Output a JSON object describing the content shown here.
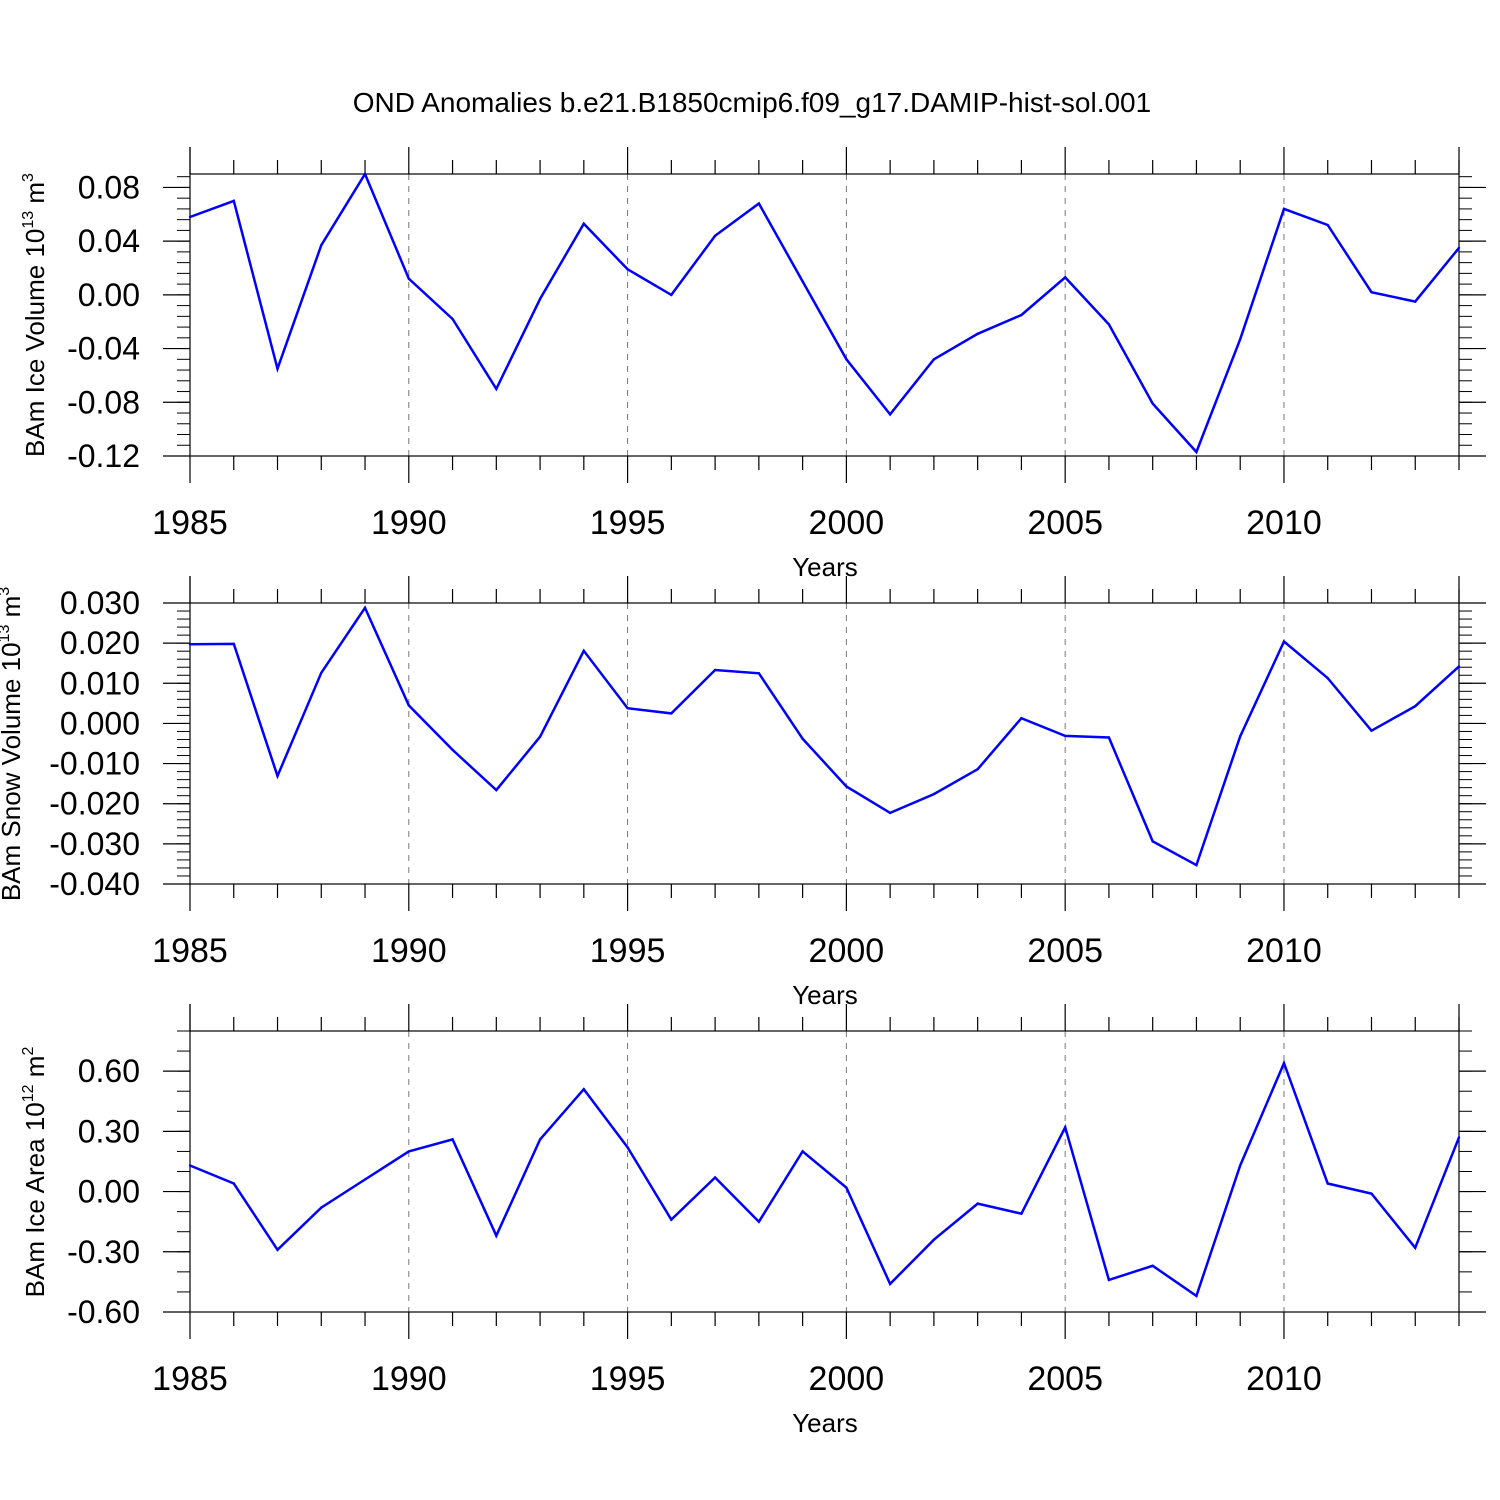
{
  "title": "OND Anomalies b.e21.B1850cmip6.f09_g17.DAMIP-hist-sol.001",
  "line_color": "#0000ff",
  "chart_data": [
    {
      "type": "line",
      "ylabel_main": "BAm Ice Volume 10",
      "ylabel_exp": "13",
      "ylabel_unit": "m",
      "ylabel_unit_exp": "3",
      "xlabel": "Years",
      "xlim": [
        1985,
        2014
      ],
      "ylim": [
        -0.12,
        0.09
      ],
      "x_ticks": [
        1985,
        1990,
        1995,
        2000,
        2005,
        2010
      ],
      "x_tick_labels": [
        "1985",
        "1990",
        "1995",
        "2000",
        "2005",
        "2010"
      ],
      "y_ticks": [
        0.08,
        0.04,
        0.0,
        -0.04,
        -0.08,
        -0.12
      ],
      "y_tick_labels": [
        "0.08",
        "0.04",
        "0.00",
        "-0.04",
        "-0.08",
        "-0.12"
      ],
      "y_minor_step": 0.008,
      "x": [
        1985,
        1986,
        1987,
        1988,
        1989,
        1990,
        1991,
        1992,
        1993,
        1994,
        1995,
        1996,
        1997,
        1998,
        1999,
        2000,
        2001,
        2002,
        2003,
        2004,
        2005,
        2006,
        2007,
        2008,
        2009,
        2010,
        2011,
        2012,
        2013,
        2014
      ],
      "values": [
        0.058,
        0.07,
        -0.055,
        0.037,
        0.09,
        0.012,
        -0.018,
        -0.07,
        -0.003,
        0.053,
        0.019,
        0.0,
        0.044,
        0.068,
        0.01,
        -0.048,
        -0.089,
        -0.048,
        -0.029,
        -0.015,
        0.013,
        -0.022,
        -0.081,
        -0.117,
        -0.033,
        0.064,
        0.052,
        0.002,
        -0.005,
        0.035
      ]
    },
    {
      "type": "line",
      "ylabel_main": "BAm Snow Volume 10",
      "ylabel_exp": "13",
      "ylabel_unit": "m",
      "ylabel_unit_exp": "3",
      "xlabel": "Years",
      "xlim": [
        1985,
        2014
      ],
      "ylim": [
        -0.04,
        0.03
      ],
      "x_ticks": [
        1985,
        1990,
        1995,
        2000,
        2005,
        2010
      ],
      "x_tick_labels": [
        "1985",
        "1990",
        "1995",
        "2000",
        "2005",
        "2010"
      ],
      "y_ticks": [
        0.03,
        0.02,
        0.01,
        0.0,
        -0.01,
        -0.02,
        -0.03,
        -0.04
      ],
      "y_tick_labels": [
        "0.030",
        "0.020",
        "0.010",
        "0.000",
        "-0.010",
        "-0.020",
        "-0.030",
        "-0.040"
      ],
      "y_minor_step": 0.002,
      "x": [
        1985,
        1986,
        1987,
        1988,
        1989,
        1990,
        1991,
        1992,
        1993,
        1994,
        1995,
        1996,
        1997,
        1998,
        1999,
        2000,
        2001,
        2002,
        2003,
        2004,
        2005,
        2006,
        2007,
        2008,
        2009,
        2010,
        2011,
        2012,
        2013,
        2014
      ],
      "values": [
        0.0197,
        0.0198,
        -0.0131,
        0.0126,
        0.0288,
        0.0045,
        -0.0066,
        -0.0166,
        -0.0033,
        0.0181,
        0.0038,
        0.0025,
        0.0133,
        0.0125,
        -0.0038,
        -0.0157,
        -0.0223,
        -0.0176,
        -0.0114,
        0.0013,
        -0.0031,
        -0.0035,
        -0.0294,
        -0.0353,
        -0.0032,
        0.0204,
        0.0113,
        -0.0018,
        0.0043,
        0.0142
      ]
    },
    {
      "type": "line",
      "ylabel_main": "BAm Ice Area 10",
      "ylabel_exp": "12",
      "ylabel_unit": "m",
      "ylabel_unit_exp": "2",
      "xlabel": "Years",
      "xlim": [
        1985,
        2014
      ],
      "ylim": [
        -0.6,
        0.8
      ],
      "x_ticks": [
        1985,
        1990,
        1995,
        2000,
        2005,
        2010
      ],
      "x_tick_labels": [
        "1985",
        "1990",
        "1995",
        "2000",
        "2005",
        "2010"
      ],
      "y_ticks": [
        0.6,
        0.3,
        0.0,
        -0.3,
        -0.6
      ],
      "y_tick_labels": [
        "0.60",
        "0.30",
        "0.00",
        "-0.30",
        "-0.60"
      ],
      "y_minor_step": 0.1,
      "x": [
        1985,
        1986,
        1987,
        1988,
        1989,
        1990,
        1991,
        1992,
        1993,
        1994,
        1995,
        1996,
        1997,
        1998,
        1999,
        2000,
        2001,
        2002,
        2003,
        2004,
        2005,
        2006,
        2007,
        2008,
        2009,
        2010,
        2011,
        2012,
        2013,
        2014
      ],
      "values": [
        0.13,
        0.04,
        -0.29,
        -0.08,
        0.06,
        0.2,
        0.26,
        -0.22,
        0.26,
        0.51,
        0.22,
        -0.14,
        0.07,
        -0.15,
        0.2,
        0.02,
        -0.46,
        -0.24,
        -0.06,
        -0.11,
        0.32,
        -0.44,
        -0.37,
        -0.52,
        0.13,
        0.64,
        0.04,
        -0.01,
        -0.28,
        0.27
      ]
    }
  ]
}
